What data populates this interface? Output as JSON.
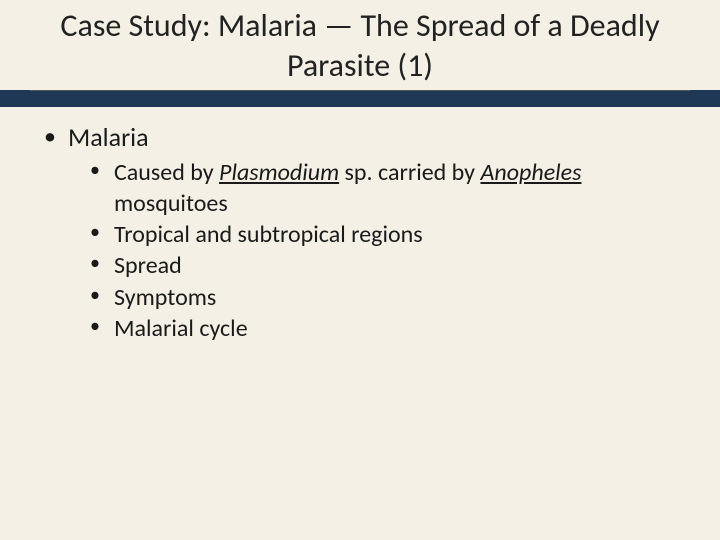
{
  "colors": {
    "background": "#f4f0e5",
    "title_band": "#1f3856",
    "text": "#1a1a1a",
    "underline": "#555555"
  },
  "typography": {
    "title_fontsize_pt": 32,
    "level1_fontsize_pt": 26,
    "level2_fontsize_pt": 24,
    "font_family": "Calibri"
  },
  "title": "Case Study: Malaria — The Spread of a Deadly Parasite (1)",
  "bullets": {
    "lvl1_0": "Malaria",
    "lvl2_0_pre": "Caused by ",
    "lvl2_0_em": "Plasmodium",
    "lvl2_0_mid": " sp. carried by ",
    "lvl2_0_em2": "Anopheles",
    "lvl2_0_post": " mosquitoes",
    "lvl2_1": "Tropical and subtropical regions",
    "lvl2_2": "Spread",
    "lvl2_3": "Symptoms",
    "lvl2_4": "Malarial cycle"
  }
}
